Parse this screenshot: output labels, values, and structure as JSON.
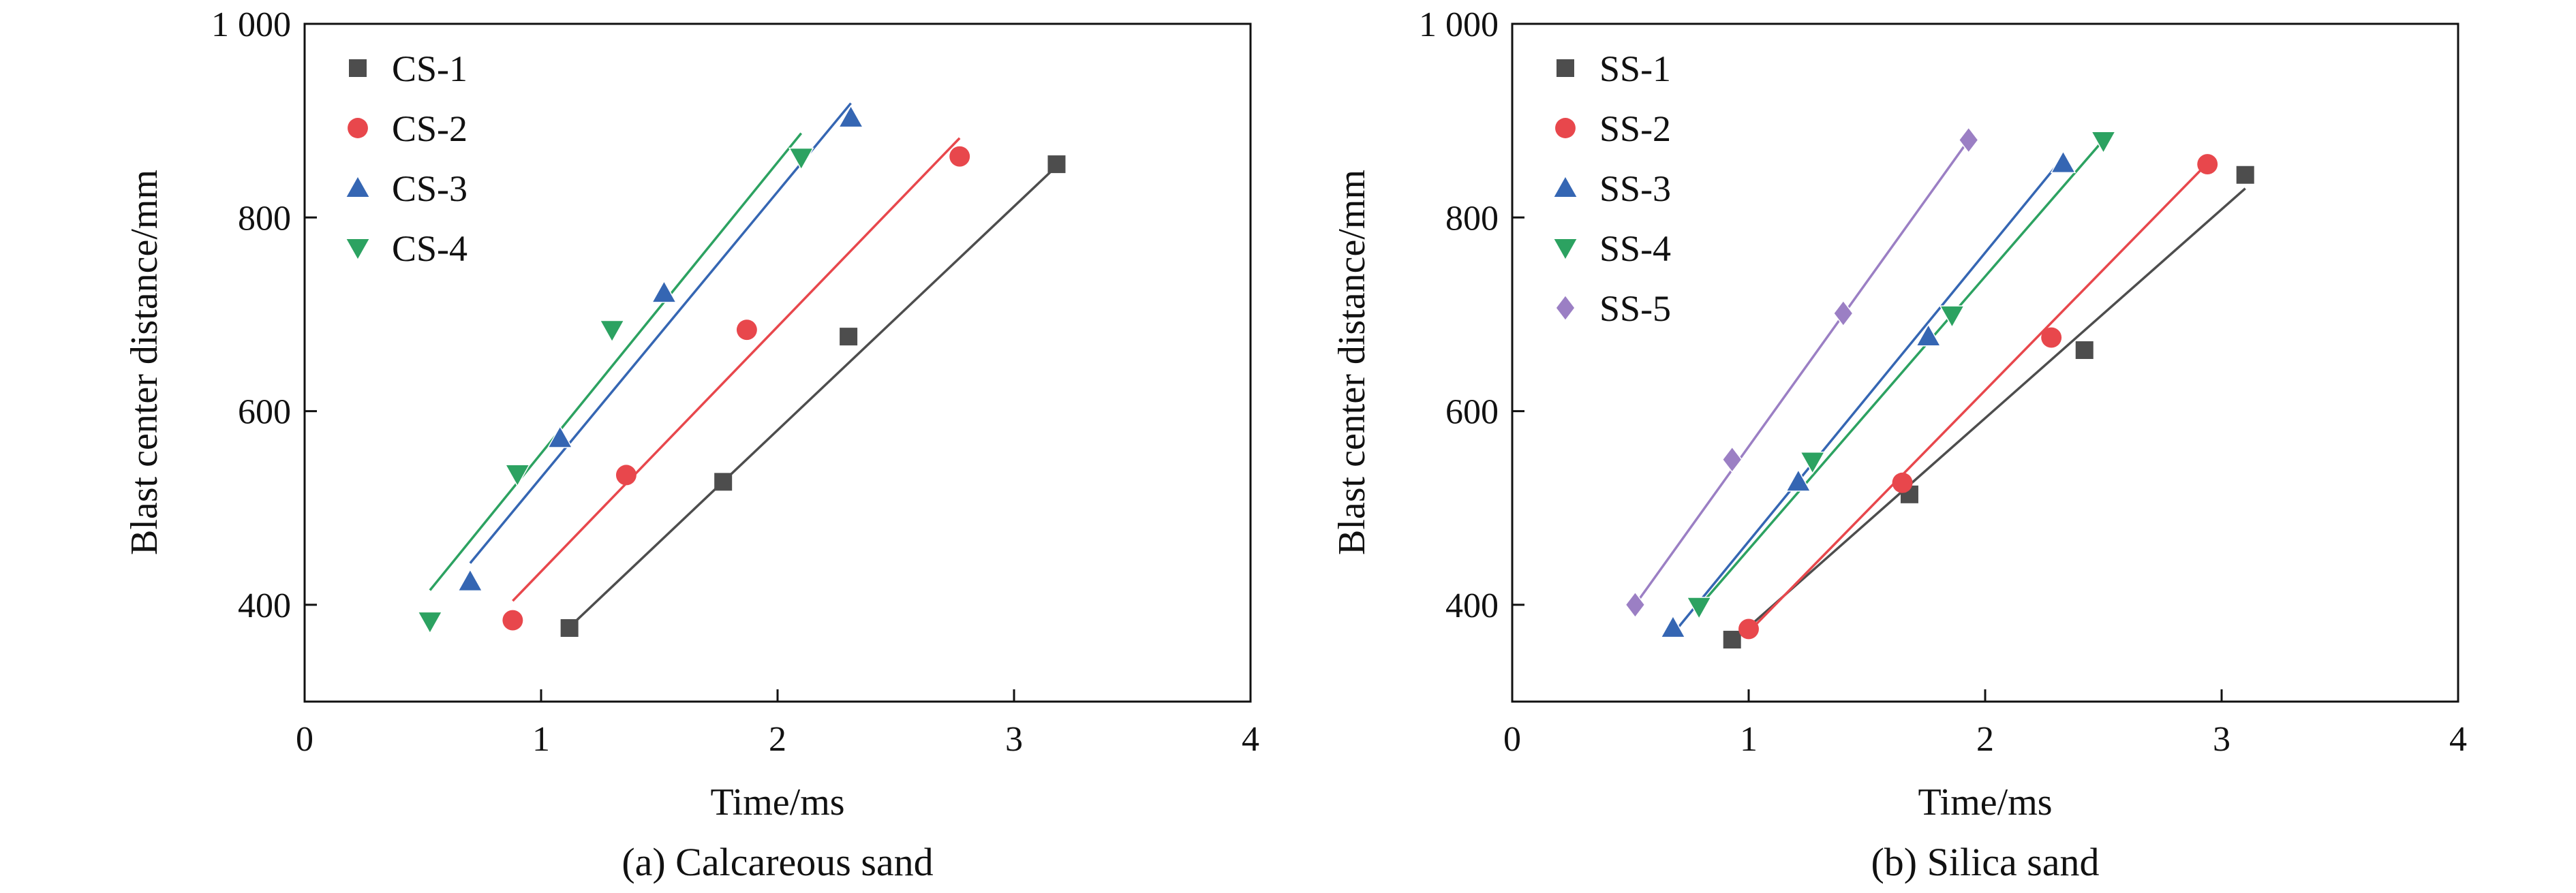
{
  "chart_data": [
    {
      "type": "scatter",
      "caption": "(a) Calcareous sand",
      "xlabel": "Time/ms",
      "ylabel": "Blast center distance/mm",
      "xlim": [
        0,
        4
      ],
      "ylim": [
        300,
        1000
      ],
      "xticks": [
        0,
        1,
        2,
        3,
        4
      ],
      "yticks": [
        400,
        600,
        800,
        1000
      ],
      "ytick_labels": [
        "400",
        "600",
        "800",
        "1 000"
      ],
      "legend_position": "top-left",
      "series": [
        {
          "name": "CS-1",
          "marker": "square",
          "color": "#4d4d4d",
          "points": [
            [
              1.12,
              376
            ],
            [
              1.77,
              527
            ],
            [
              2.3,
              677
            ],
            [
              3.18,
              855
            ]
          ],
          "fit": [
            [
              1.12,
              377
            ],
            [
              3.18,
              853
            ]
          ]
        },
        {
          "name": "CS-2",
          "marker": "circle",
          "color": "#e8474c",
          "points": [
            [
              0.88,
              384
            ],
            [
              1.36,
              534
            ],
            [
              1.87,
              684
            ],
            [
              2.77,
              863
            ]
          ],
          "fit": [
            [
              0.88,
              404
            ],
            [
              2.77,
              882
            ]
          ]
        },
        {
          "name": "CS-3",
          "marker": "triangle-up",
          "color": "#3566b3",
          "points": [
            [
              0.7,
              424
            ],
            [
              1.08,
              572
            ],
            [
              1.52,
              722
            ],
            [
              2.31,
              903
            ]
          ],
          "fit": [
            [
              0.7,
              443
            ],
            [
              2.31,
              918
            ]
          ]
        },
        {
          "name": "CS-4",
          "marker": "triangle-down",
          "color": "#2ca261",
          "points": [
            [
              0.53,
              383
            ],
            [
              0.9,
              535
            ],
            [
              1.3,
              684
            ],
            [
              2.1,
              862
            ]
          ],
          "fit": [
            [
              0.53,
              415
            ],
            [
              2.1,
              887
            ]
          ]
        }
      ]
    },
    {
      "type": "scatter",
      "caption": "(b) Silica sand",
      "xlabel": "Time/ms",
      "ylabel": "Blast center distance/mm",
      "xlim": [
        0,
        4
      ],
      "ylim": [
        300,
        1000
      ],
      "xticks": [
        0,
        1,
        2,
        3,
        4
      ],
      "yticks": [
        400,
        600,
        800,
        1000
      ],
      "ytick_labels": [
        "400",
        "600",
        "800",
        "1 000"
      ],
      "legend_position": "top-left",
      "series": [
        {
          "name": "SS-1",
          "marker": "square",
          "color": "#4d4d4d",
          "points": [
            [
              0.93,
              364
            ],
            [
              1.68,
              514
            ],
            [
              2.42,
              663
            ],
            [
              3.1,
              844
            ]
          ],
          "fit": [
            [
              0.93,
              362
            ],
            [
              3.1,
              830
            ]
          ]
        },
        {
          "name": "SS-2",
          "marker": "circle",
          "color": "#e8474c",
          "points": [
            [
              1.0,
              375
            ],
            [
              1.65,
              526
            ],
            [
              2.28,
              676
            ],
            [
              2.94,
              855
            ]
          ],
          "fit": [
            [
              1.0,
              372
            ],
            [
              2.94,
              856
            ]
          ]
        },
        {
          "name": "SS-3",
          "marker": "triangle-up",
          "color": "#3566b3",
          "points": [
            [
              0.68,
              376
            ],
            [
              1.21,
              527
            ],
            [
              1.76,
              677
            ],
            [
              2.33,
              856
            ]
          ],
          "fit": [
            [
              0.68,
              370
            ],
            [
              2.33,
              862
            ]
          ]
        },
        {
          "name": "SS-4",
          "marker": "triangle-down",
          "color": "#2ca261",
          "points": [
            [
              0.79,
              398
            ],
            [
              1.27,
              548
            ],
            [
              1.86,
              699
            ],
            [
              2.5,
              879
            ]
          ],
          "fit": [
            [
              0.79,
              398
            ],
            [
              2.5,
              880
            ]
          ]
        },
        {
          "name": "SS-5",
          "marker": "diamond",
          "color": "#9b7fc4",
          "points": [
            [
              0.52,
              400
            ],
            [
              0.93,
              550
            ],
            [
              1.4,
              701
            ],
            [
              1.93,
              880
            ]
          ],
          "fit": [
            [
              0.52,
              400
            ],
            [
              1.93,
              880
            ]
          ]
        }
      ]
    }
  ]
}
